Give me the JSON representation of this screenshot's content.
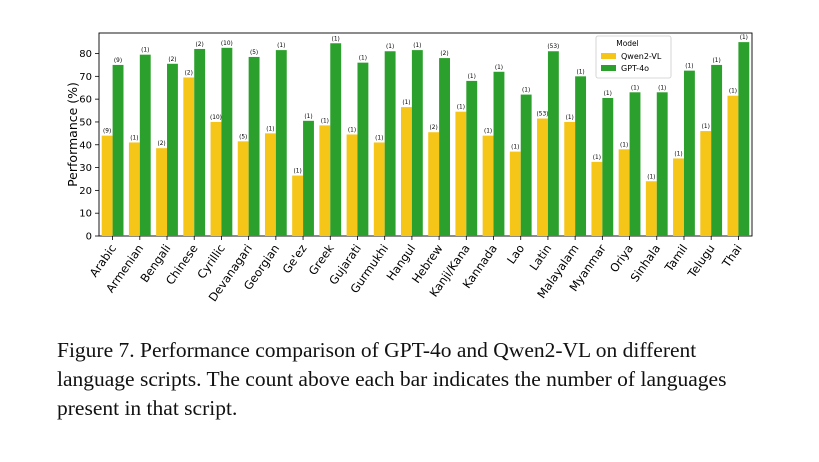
{
  "caption": "Figure 7. Performance comparison of GPT-4o and Qwen2-VL on different language scripts. The count above each bar indicates the number of languages present in that script.",
  "chart_data": {
    "type": "bar",
    "title": "",
    "xlabel": "",
    "ylabel": "Performance (%)",
    "ylim": [
      0,
      89
    ],
    "yticks": [
      0,
      10,
      20,
      30,
      40,
      50,
      60,
      70,
      80
    ],
    "grid": false,
    "legend": {
      "title": "Model",
      "placement": "top-right"
    },
    "categories": [
      "Arabic",
      "Armenian",
      "Bengali",
      "Chinese",
      "Cyrillic",
      "Devanagari",
      "Georgian",
      "Ge'ez",
      "Greek",
      "Gujarati",
      "Gurmukhi",
      "Hangul",
      "Hebrew",
      "Kanji/Kana",
      "Kannada",
      "Lao",
      "Latin",
      "Malayalam",
      "Myanmar",
      "Oriya",
      "Sinhala",
      "Tamil",
      "Telugu",
      "Thai"
    ],
    "series": [
      {
        "name": "Qwen2-VL",
        "color": "#f5c518",
        "values": [
          44,
          41,
          38.5,
          69.5,
          50,
          41.5,
          45,
          26.5,
          48.5,
          44.5,
          41,
          56.5,
          45.5,
          54.5,
          44,
          37,
          51.5,
          50,
          32.5,
          38,
          24,
          34,
          46,
          61.5
        ],
        "counts": [
          "(9)",
          "(1)",
          "(2)",
          "(2)",
          "(10)",
          "(5)",
          "(1)",
          "(1)",
          "(1)",
          "(1)",
          "(1)",
          "(1)",
          "(2)",
          "(1)",
          "(1)",
          "(1)",
          "(53)",
          "(1)",
          "(1)",
          "(1)",
          "(1)",
          "(1)",
          "(1)",
          "(1)"
        ]
      },
      {
        "name": "GPT-4o",
        "color": "#2ca02c",
        "values": [
          75,
          79.5,
          75.5,
          82,
          82.5,
          78.5,
          81.5,
          50.5,
          84.5,
          76,
          81,
          81.5,
          78,
          68,
          72,
          62,
          81,
          70,
          60.5,
          63,
          63,
          72.5,
          75,
          85
        ],
        "counts": [
          "(9)",
          "(1)",
          "(2)",
          "(2)",
          "(10)",
          "(5)",
          "(1)",
          "(1)",
          "(1)",
          "(1)",
          "(1)",
          "(1)",
          "(2)",
          "(1)",
          "(1)",
          "(1)",
          "(53)",
          "(1)",
          "(1)",
          "(1)",
          "(1)",
          "(1)",
          "(1)",
          "(1)"
        ]
      }
    ]
  }
}
